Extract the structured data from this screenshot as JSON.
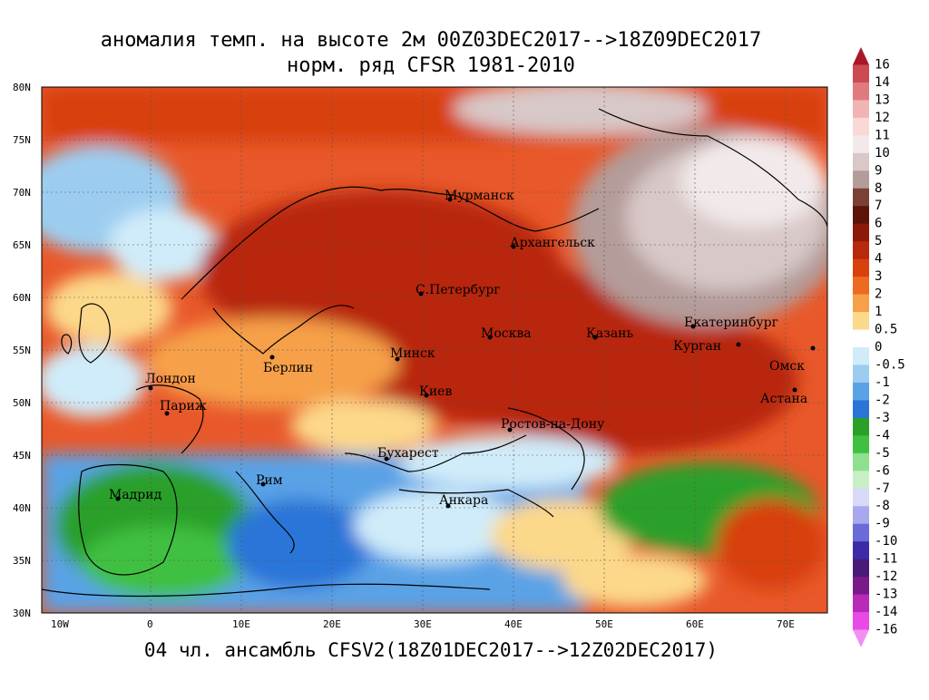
{
  "title": {
    "line1": "аномалия темп. на высоте 2м 00Z03DEC2017-->18Z09DEC2017",
    "line2": "норм. ряд CFSR 1981-2010"
  },
  "footer": "04 чл. ансамбль CFSV2(18Z01DEC2017-->12Z02DEC2017)",
  "map": {
    "lat_labels": [
      "80N",
      "75N",
      "70N",
      "65N",
      "60N",
      "55N",
      "50N",
      "45N",
      "40N",
      "35N",
      "30N"
    ],
    "lon_labels": [
      "10W",
      "0",
      "10E",
      "20E",
      "30E",
      "40E",
      "50E",
      "60E",
      "70E"
    ],
    "cities": [
      {
        "name": "Мурманск"
      },
      {
        "name": "Архангельск"
      },
      {
        "name": "С.Петербург"
      },
      {
        "name": "Москва"
      },
      {
        "name": "Казань"
      },
      {
        "name": "Екатеринбург"
      },
      {
        "name": "Курган"
      },
      {
        "name": "Омск"
      },
      {
        "name": "Астана"
      },
      {
        "name": "Минск"
      },
      {
        "name": "Берлин"
      },
      {
        "name": "Лондон"
      },
      {
        "name": "Париж"
      },
      {
        "name": "Киев"
      },
      {
        "name": "Ростов-на-Дону"
      },
      {
        "name": "Бухарест"
      },
      {
        "name": "Рим"
      },
      {
        "name": "Анкара"
      },
      {
        "name": "Мадрид"
      }
    ]
  },
  "colorbar": {
    "labels": [
      "16",
      "14",
      "13",
      "12",
      "11",
      "10",
      "9",
      "8",
      "7",
      "6",
      "5",
      "4",
      "3",
      "2",
      "1",
      "0.5",
      "0",
      "-0.5",
      "-1",
      "-2",
      "-3",
      "-4",
      "-5",
      "-6",
      "-7",
      "-8",
      "-9",
      "-10",
      "-11",
      "-12",
      "-13",
      "-14",
      "-16"
    ],
    "colors": [
      "#a8182a",
      "#cc4a52",
      "#e07a7e",
      "#f1b4b4",
      "#fad8d6",
      "#f2eaea",
      "#d8c8c8",
      "#b49c9a",
      "#7a4036",
      "#5c1408",
      "#8c1a08",
      "#b8280a",
      "#d8400e",
      "#ec6a22",
      "#f6a048",
      "#fcd88a",
      "#ffffff",
      "#d0ecfa",
      "#9ccdf0",
      "#5aa2e6",
      "#2a74d8",
      "#2aa02a",
      "#40c040",
      "#8ee08e",
      "#c8f0c8",
      "#d8d8f8",
      "#a8a8ee",
      "#6a6ad8",
      "#3c2aa8",
      "#4a1a7a",
      "#7a1a8a",
      "#b82ab8",
      "#e84ae8",
      "#f290f2"
    ]
  }
}
